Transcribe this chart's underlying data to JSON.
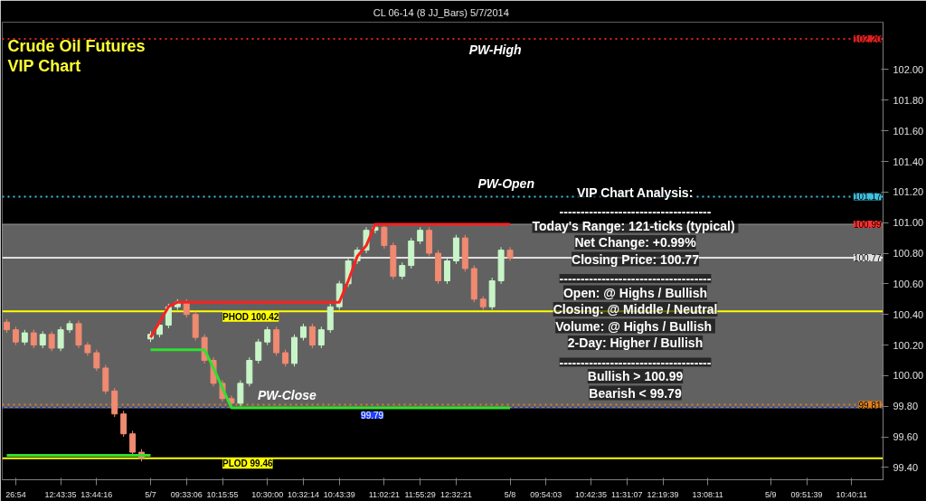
{
  "chart_data": {
    "type": "candlestick",
    "title": "Crude Oil Futures",
    "subtitle": "VIP Chart",
    "categories": [
      null,
      "26:54",
      null,
      null,
      null,
      null,
      "12:43:35",
      null,
      null,
      null,
      "13:44:16",
      null,
      null,
      null,
      null,
      null,
      "5/7",
      null,
      null,
      null,
      "09:33:06",
      null,
      null,
      null,
      "10:15:55",
      null,
      null,
      null,
      null,
      "10:30:00",
      null,
      null,
      null,
      "10:32:14",
      null,
      null,
      null,
      "10:43:39",
      null,
      null,
      null,
      null,
      "11:02:21",
      null,
      null,
      null,
      "11:55:29",
      null,
      null,
      null,
      "12:32:21",
      null,
      null,
      null,
      null,
      null,
      "5/8",
      null,
      null,
      null,
      "09:54:03",
      null,
      null,
      null,
      null,
      "10:42:35",
      null,
      null,
      null,
      "11:31:07",
      null,
      null,
      null,
      "12:19:39",
      null,
      null,
      null,
      null,
      "13:08:11",
      null,
      null,
      null,
      null,
      null,
      null,
      "5/9",
      null,
      null,
      null,
      "09:51:39",
      null,
      null,
      null,
      null,
      "10:40:11",
      null,
      null,
      null
    ],
    "ohlc": [
      [
        100.35,
        100.37,
        100.28,
        100.3
      ],
      [
        100.3,
        100.32,
        100.2,
        100.22
      ],
      [
        100.22,
        100.3,
        100.2,
        100.28
      ],
      [
        100.28,
        100.3,
        100.18,
        100.2
      ],
      [
        100.2,
        100.29,
        100.18,
        100.27
      ],
      [
        100.27,
        100.29,
        100.16,
        100.18
      ],
      [
        100.18,
        100.32,
        100.16,
        100.3
      ],
      [
        100.3,
        100.36,
        100.28,
        100.34
      ],
      [
        100.34,
        100.36,
        100.18,
        100.2
      ],
      [
        100.2,
        100.22,
        100.13,
        100.15
      ],
      [
        100.15,
        100.17,
        100.03,
        100.05
      ],
      [
        100.05,
        100.07,
        99.88,
        99.9
      ],
      [
        99.9,
        99.92,
        99.73,
        99.75
      ],
      [
        99.75,
        99.77,
        99.6,
        99.62
      ],
      [
        99.62,
        99.64,
        99.48,
        99.5
      ],
      [
        99.5,
        99.52,
        99.44,
        99.46
      ],
      [
        100.24,
        100.29,
        100.22,
        100.27
      ],
      [
        100.27,
        100.35,
        100.25,
        100.33
      ],
      [
        100.33,
        100.47,
        100.31,
        100.45
      ],
      [
        100.45,
        100.5,
        100.43,
        100.48
      ],
      [
        100.48,
        100.5,
        100.38,
        100.4
      ],
      [
        100.4,
        100.42,
        100.23,
        100.25
      ],
      [
        100.25,
        100.27,
        100.08,
        100.1
      ],
      [
        100.1,
        100.12,
        99.93,
        99.95
      ],
      [
        99.95,
        99.97,
        99.83,
        99.85
      ],
      [
        99.85,
        99.87,
        99.8,
        99.82
      ],
      [
        99.82,
        99.97,
        99.8,
        99.95
      ],
      [
        99.95,
        100.12,
        99.93,
        100.1
      ],
      [
        100.1,
        100.24,
        100.08,
        100.22
      ],
      [
        100.22,
        100.32,
        100.2,
        100.3
      ],
      [
        100.3,
        100.32,
        100.13,
        100.15
      ],
      [
        100.15,
        100.17,
        100.06,
        100.08
      ],
      [
        100.08,
        100.27,
        100.06,
        100.25
      ],
      [
        100.25,
        100.34,
        100.23,
        100.32
      ],
      [
        100.32,
        100.34,
        100.18,
        100.2
      ],
      [
        100.2,
        100.32,
        100.18,
        100.3
      ],
      [
        100.3,
        100.47,
        100.28,
        100.45
      ],
      [
        100.45,
        100.62,
        100.43,
        100.6
      ],
      [
        100.6,
        100.77,
        100.58,
        100.75
      ],
      [
        100.75,
        100.84,
        100.73,
        100.82
      ],
      [
        100.82,
        100.97,
        100.8,
        100.95
      ],
      [
        100.95,
        100.99,
        100.93,
        100.97
      ],
      [
        100.97,
        100.98,
        100.83,
        100.85
      ],
      [
        100.85,
        100.87,
        100.63,
        100.65
      ],
      [
        100.65,
        100.74,
        100.63,
        100.72
      ],
      [
        100.72,
        100.9,
        100.7,
        100.88
      ],
      [
        100.88,
        100.97,
        100.86,
        100.95
      ],
      [
        100.95,
        100.97,
        100.78,
        100.8
      ],
      [
        100.8,
        100.82,
        100.6,
        100.62
      ],
      [
        100.62,
        100.77,
        100.6,
        100.75
      ],
      [
        100.75,
        100.92,
        100.73,
        100.9
      ],
      [
        100.9,
        100.92,
        100.68,
        100.7
      ],
      [
        100.7,
        100.72,
        100.48,
        100.5
      ],
      [
        100.5,
        100.52,
        100.43,
        100.45
      ],
      [
        100.45,
        100.64,
        100.43,
        100.62
      ],
      [
        100.62,
        100.84,
        100.6,
        100.82
      ],
      [
        100.82,
        100.84,
        100.75,
        100.77
      ],
      null,
      null,
      null,
      null,
      null,
      null,
      null,
      null,
      null,
      null,
      null,
      null,
      null,
      null,
      null,
      null,
      null,
      null,
      null,
      null,
      null,
      null,
      null,
      null,
      null,
      null,
      null,
      null,
      null,
      null,
      null,
      null,
      null,
      null,
      null,
      null,
      null,
      null,
      null,
      null,
      null
    ],
    "series": [
      {
        "type": "line",
        "color": "#ff2020",
        "values": [
          null,
          null,
          null,
          null,
          null,
          null,
          null,
          null,
          null,
          null,
          null,
          null,
          null,
          null,
          null,
          null,
          100.25,
          100.35,
          100.45,
          100.48,
          100.48,
          100.48,
          100.48,
          100.48,
          100.48,
          100.48,
          100.48,
          100.48,
          100.48,
          100.48,
          100.48,
          100.48,
          100.48,
          100.48,
          100.48,
          100.48,
          100.48,
          100.48,
          100.62,
          100.78,
          100.85,
          100.99,
          100.99,
          100.99,
          100.99,
          100.99,
          100.99,
          100.99,
          100.99,
          100.99,
          100.99,
          100.99,
          100.99,
          100.99,
          100.99,
          100.99,
          100.99,
          null,
          null,
          null,
          null,
          null,
          null,
          null,
          null,
          null,
          null,
          null,
          null,
          null,
          null,
          null,
          null,
          null,
          null,
          null,
          null,
          null,
          null,
          null,
          null,
          null,
          null,
          null,
          null,
          null,
          null,
          null,
          null,
          null,
          null,
          null,
          null,
          null,
          null,
          null,
          null,
          null
        ]
      },
      {
        "type": "line",
        "color": "#30e030",
        "values": [
          null,
          null,
          null,
          null,
          null,
          null,
          null,
          null,
          null,
          null,
          null,
          null,
          null,
          null,
          null,
          null,
          100.17,
          100.17,
          100.17,
          100.17,
          100.17,
          100.17,
          100.17,
          100.05,
          99.92,
          99.79,
          99.79,
          99.79,
          99.79,
          99.79,
          99.79,
          99.79,
          99.79,
          99.79,
          99.79,
          99.79,
          99.79,
          99.79,
          99.79,
          99.79,
          99.79,
          99.79,
          99.79,
          99.79,
          99.79,
          99.79,
          99.79,
          99.79,
          99.79,
          99.79,
          99.79,
          99.79,
          99.79,
          99.79,
          99.79,
          99.79,
          99.79,
          null,
          null,
          null,
          null,
          null,
          null,
          null,
          null,
          null,
          null,
          null,
          null,
          null,
          null,
          null,
          null,
          null,
          null,
          null,
          null,
          null,
          null,
          null,
          null,
          null,
          null,
          null,
          null,
          null,
          null,
          null,
          null,
          null,
          null,
          null,
          null,
          null,
          null,
          null,
          null,
          null
        ]
      },
      {
        "type": "line",
        "color": "#30e030",
        "values": [
          99.48,
          99.48,
          99.48,
          99.48,
          99.48,
          99.48,
          99.48,
          99.48,
          99.48,
          99.48,
          99.48,
          99.48,
          99.48,
          99.48,
          99.48,
          99.48,
          99.48,
          null,
          null,
          null,
          null,
          null,
          null,
          null,
          null,
          null,
          null,
          null,
          null,
          null,
          null,
          null,
          null,
          null,
          null,
          null,
          null,
          null,
          null,
          null,
          null,
          null,
          null,
          null,
          null,
          null,
          null,
          null,
          null,
          null,
          null,
          null,
          null,
          null,
          null,
          null,
          null,
          null,
          null,
          null,
          null,
          null,
          null,
          null,
          null,
          null,
          null,
          null,
          null,
          null,
          null,
          null,
          null,
          null,
          null,
          null,
          null,
          null,
          null,
          null,
          null,
          null,
          null,
          null,
          null,
          null,
          null,
          null,
          null,
          null,
          null,
          null,
          null,
          null,
          null,
          null,
          null,
          null
        ]
      }
    ],
    "ylim": [
      99.32,
      102.31
    ],
    "yticks": [
      {
        "value": 99.4,
        "label": "99.40"
      },
      {
        "value": 99.6,
        "label": "99.60"
      },
      {
        "value": 99.8,
        "label": "99.80"
      },
      {
        "value": 100.0,
        "label": "100.00"
      },
      {
        "value": 100.2,
        "label": "100.20"
      },
      {
        "value": 100.4,
        "label": "100.40"
      },
      {
        "value": 100.6,
        "label": "100.60"
      },
      {
        "value": 100.8,
        "label": "100.80"
      },
      {
        "value": 101.0,
        "label": "101.00"
      },
      {
        "value": 101.2,
        "label": "101.20"
      },
      {
        "value": 101.4,
        "label": "101.40"
      },
      {
        "value": 101.6,
        "label": "101.60"
      },
      {
        "value": 101.8,
        "label": "101.80"
      },
      {
        "value": 102.0,
        "label": "102.00"
      }
    ],
    "ref_lines": [
      {
        "axis": "y",
        "value": 102.2,
        "label": "PW-High",
        "color": "#e02020",
        "line_style": "dotted"
      },
      {
        "axis": "y",
        "value": 101.17,
        "label": "PW-Open",
        "color": "#40c0e0",
        "line_style": "dotted"
      },
      {
        "axis": "y",
        "value": 100.77,
        "color": "#e0e0e0",
        "line_style": "solid"
      },
      {
        "axis": "y",
        "value": 100.42,
        "label": "PHOD 100.42",
        "color": "#ffff00",
        "line_style": "solid"
      },
      {
        "axis": "y",
        "value": 99.81,
        "color": "#e08020",
        "line_style": "dotted"
      },
      {
        "axis": "y",
        "value": 99.79,
        "label": "PW-Close",
        "color": "#2030c0",
        "line_style": "dotted"
      },
      {
        "axis": "y",
        "value": 99.46,
        "label": "PLOD 99.46",
        "color": "#ffff00",
        "line_style": "solid"
      }
    ],
    "bands": [
      {
        "axis": "y",
        "from": 99.79,
        "to": 100.99,
        "color": "#b0b0b0"
      }
    ],
    "annotations": [
      "CL 06-14 (8 JJ_Bars)  5/7/2014",
      "VIP Chart Analysis:",
      "------------------------------------",
      "Today's Range:  121-ticks (typical)",
      "Net Change: +0.99%",
      "Closing Price: 100.77",
      "------------------------------------",
      "Open: @ Highs / Bullish",
      "Closing: @ Middle / Neutral",
      "Volume:  @ Highs / Bullish",
      "2-Day: Higher / Bullish",
      "------------------------------------",
      "Bullish > 100.99",
      "Bearish < 99.79",
      {
        "text": "99.79",
        "y": 99.79
      },
      {
        "text": "102.20",
        "y": 102.2
      },
      {
        "text": "101.17",
        "y": 101.17
      },
      {
        "text": "100.99",
        "y": 100.99
      },
      {
        "text": "100.77",
        "y": 100.77
      },
      {
        "text": "99.81",
        "y": 99.81
      }
    ],
    "grid": false
  }
}
